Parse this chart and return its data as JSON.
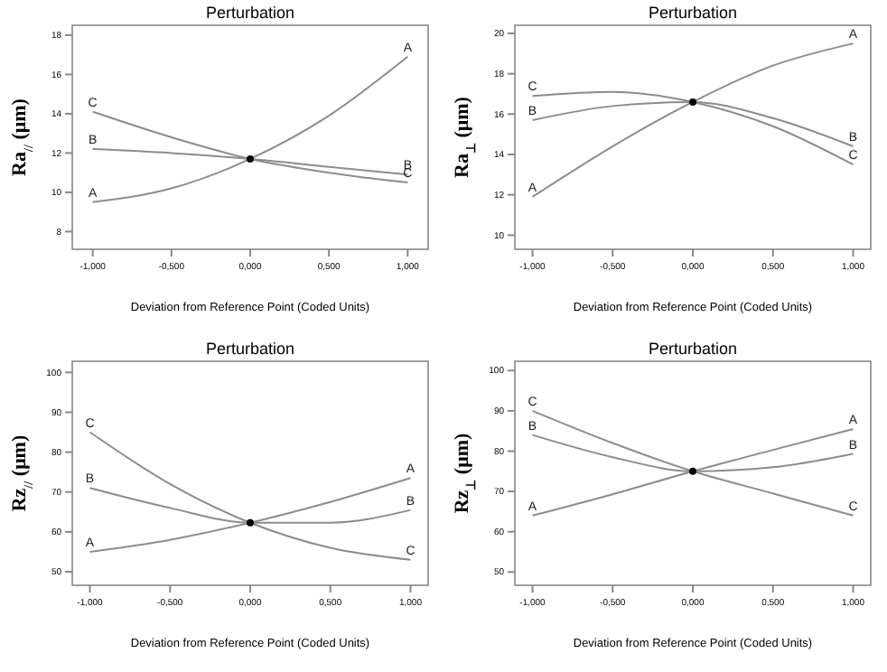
{
  "chart_data": [
    {
      "type": "line",
      "title": "Perturbation",
      "xlabel": "Deviation from Reference Point (Coded Units)",
      "ylabel": "Ra$_{//}$ (μm)",
      "x": [
        -1,
        -0.5,
        0,
        0.5,
        1
      ],
      "xlim": [
        -1.13,
        1.13
      ],
      "xticks": [
        {
          "value": -1,
          "label": "-1,000"
        },
        {
          "value": -0.5,
          "label": "-0,500"
        },
        {
          "value": 0,
          "label": "0,000"
        },
        {
          "value": 0.5,
          "label": "0,500"
        },
        {
          "value": 1,
          "label": "1,000"
        }
      ],
      "ylim": [
        7.1,
        18.5
      ],
      "yticks": [
        8,
        10,
        12,
        14,
        16,
        18
      ],
      "grid": false,
      "marker": "none",
      "line_style": "solid",
      "series": [
        {
          "name": "A",
          "color": "#8c8c8c",
          "values": [
            9.5,
            10.2,
            11.7,
            13.9,
            16.9
          ]
        },
        {
          "name": "B",
          "color": "#8c8c8c",
          "values": [
            12.2,
            12.0,
            11.7,
            11.3,
            10.9
          ]
        },
        {
          "name": "C",
          "color": "#8c8c8c",
          "values": [
            14.1,
            12.8,
            11.7,
            11.0,
            10.5
          ]
        },
        {
          "type": "scatter",
          "color": "#000000",
          "marker": "circle",
          "values": [
            null,
            null,
            11.7,
            null,
            null
          ]
        }
      ]
    },
    {
      "type": "line",
      "title": "Perturbation",
      "xlabel": "Deviation from Reference Point (Coded Units)",
      "ylabel": "Ra$_{⊥}$ (μm)",
      "x": [
        -1,
        -0.5,
        0,
        0.5,
        1
      ],
      "xlim": [
        -1.11,
        1.11
      ],
      "xticks": [
        {
          "value": -1,
          "label": "-1,000"
        },
        {
          "value": -0.5,
          "label": "-0,500"
        },
        {
          "value": 0,
          "label": "0,000"
        },
        {
          "value": 0.5,
          "label": "0,500"
        },
        {
          "value": 1,
          "label": "1,000"
        }
      ],
      "ylim": [
        9.3,
        20.4
      ],
      "yticks": [
        10,
        12,
        14,
        16,
        18,
        20
      ],
      "grid": false,
      "marker": "none",
      "line_style": "solid",
      "series": [
        {
          "name": "A",
          "color": "#8c8c8c",
          "values": [
            11.9,
            14.4,
            16.6,
            18.4,
            19.5
          ]
        },
        {
          "name": "B",
          "color": "#8c8c8c",
          "values": [
            15.7,
            16.4,
            16.6,
            15.8,
            14.4
          ]
        },
        {
          "name": "C",
          "color": "#8c8c8c",
          "values": [
            16.9,
            17.1,
            16.6,
            15.4,
            13.5
          ]
        },
        {
          "type": "scatter",
          "color": "#000000",
          "marker": "circle",
          "values": [
            null,
            null,
            16.6,
            null,
            null
          ]
        }
      ]
    },
    {
      "type": "line",
      "title": "Perturbation",
      "xlabel": "Deviation from Reference Point (Coded Units)",
      "ylabel": "Rz$_{//}$ (μm)",
      "x": [
        -1,
        -0.5,
        0,
        0.5,
        1
      ],
      "xlim": [
        -1.11,
        1.11
      ],
      "xticks": [
        {
          "value": -1,
          "label": "-1,000"
        },
        {
          "value": -0.5,
          "label": "-0,500"
        },
        {
          "value": 0,
          "label": "0,000"
        },
        {
          "value": 0.5,
          "label": "0,500"
        },
        {
          "value": 1,
          "label": "1,000"
        }
      ],
      "ylim": [
        46.6,
        102.8
      ],
      "yticks": [
        50,
        60,
        70,
        80,
        90,
        100
      ],
      "grid": false,
      "marker": "none",
      "line_style": "solid",
      "series": [
        {
          "name": "A",
          "color": "#8c8c8c",
          "values": [
            55,
            58,
            62.3,
            67.5,
            73.5
          ]
        },
        {
          "name": "B",
          "color": "#8c8c8c",
          "values": [
            71,
            66,
            62.3,
            62.3,
            65.5
          ]
        },
        {
          "name": "C",
          "color": "#8c8c8c",
          "values": [
            85,
            72,
            62.3,
            56,
            53
          ]
        },
        {
          "type": "scatter",
          "color": "#000000",
          "marker": "circle",
          "values": [
            null,
            null,
            62.3,
            null,
            null
          ]
        }
      ]
    },
    {
      "type": "line",
      "title": "Perturbation",
      "xlabel": "Deviation from Reference Point (Coded Units)",
      "ylabel": "Rz$_{⊥}$ (μm)",
      "x": [
        -1,
        -0.5,
        0,
        0.5,
        1
      ],
      "xlim": [
        -1.11,
        1.11
      ],
      "xticks": [
        {
          "value": -1,
          "label": "-1,000"
        },
        {
          "value": -0.5,
          "label": "-0,500"
        },
        {
          "value": 0,
          "label": "0,000"
        },
        {
          "value": 0.5,
          "label": "0,500"
        },
        {
          "value": 1,
          "label": "1,000"
        }
      ],
      "ylim": [
        46.7,
        102.3
      ],
      "yticks": [
        50,
        60,
        70,
        80,
        90,
        100
      ],
      "grid": false,
      "marker": "none",
      "line_style": "solid",
      "series": [
        {
          "name": "A",
          "color": "#8c8c8c",
          "values": [
            64,
            69.3,
            75,
            80.3,
            85.5
          ]
        },
        {
          "name": "B",
          "color": "#8c8c8c",
          "values": [
            84,
            78.5,
            75,
            76,
            79.3
          ]
        },
        {
          "name": "C",
          "color": "#8c8c8c",
          "values": [
            90,
            82,
            75,
            69.5,
            64
          ]
        },
        {
          "type": "scatter",
          "color": "#000000",
          "marker": "circle",
          "values": [
            null,
            null,
            75,
            null,
            null
          ]
        }
      ]
    }
  ]
}
